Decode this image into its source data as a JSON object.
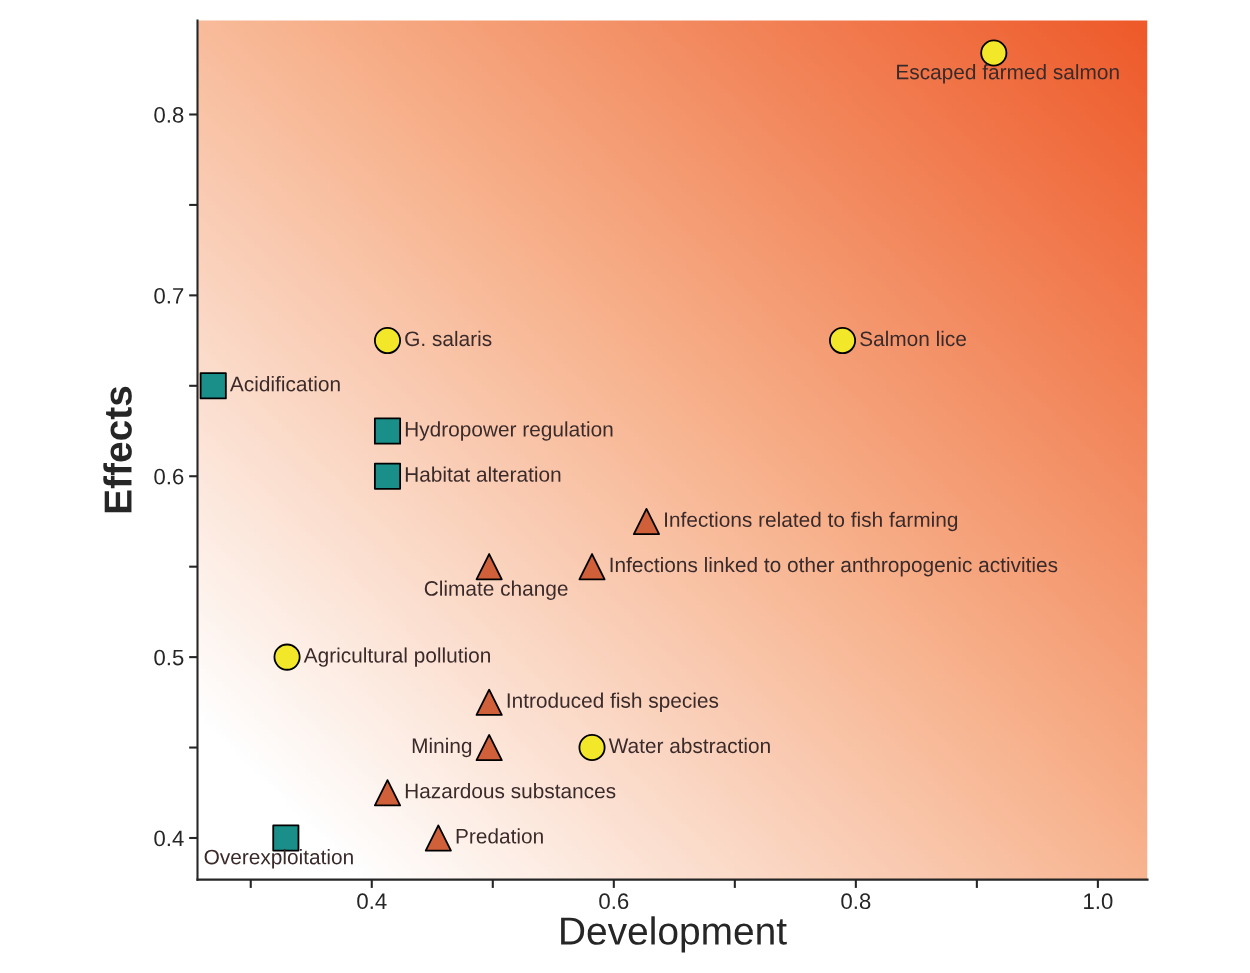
{
  "chart_data": {
    "type": "scatter",
    "xlabel": "Development",
    "ylabel": "Effects",
    "xlim": [
      0.256,
      1.041
    ],
    "ylim": [
      0.377,
      0.852
    ],
    "xticks": [
      {
        "value": 0.3,
        "label": null
      },
      0.4,
      {
        "value": 0.5,
        "label": null
      },
      0.6,
      {
        "value": 0.7,
        "label": null
      },
      0.8,
      {
        "value": 0.9,
        "label": null
      },
      {
        "value": 1.0,
        "label": "1.0"
      }
    ],
    "yticks": [
      0.4,
      {
        "value": 0.45,
        "label": null
      },
      0.5,
      {
        "value": 0.55,
        "label": null
      },
      0.6,
      {
        "value": 0.65,
        "label": null
      },
      0.7,
      {
        "value": 0.75,
        "label": null
      },
      0.8
    ],
    "grid": false,
    "legend": false,
    "series": [
      {
        "marker": "circle",
        "color": "#f2e829",
        "x": [
          0.914,
          0.413,
          0.789,
          0.33,
          0.582
        ],
        "values": [
          0.834,
          0.675,
          0.675,
          0.5,
          0.45
        ]
      },
      {
        "marker": "square",
        "color": "#1a8f8a",
        "x": [
          0.269,
          0.413,
          0.413,
          0.329
        ],
        "values": [
          0.65,
          0.625,
          0.6,
          0.4
        ]
      },
      {
        "marker": "triangle",
        "color": "#d0603a",
        "x": [
          0.627,
          0.497,
          0.582,
          0.497,
          0.497,
          0.413,
          0.455
        ],
        "values": [
          0.575,
          0.55,
          0.55,
          0.475,
          0.45,
          0.425,
          0.4
        ]
      }
    ],
    "annotations": [
      {
        "text": "Escaped farmed salmon",
        "x": 0.914,
        "y": 0.834
      },
      {
        "text": "G. salaris",
        "x": 0.413,
        "y": 0.675
      },
      {
        "text": "Salmon lice",
        "x": 0.789,
        "y": 0.675
      },
      {
        "text": "Acidification",
        "x": 0.269,
        "y": 0.65
      },
      {
        "text": "Hydropower regulation",
        "x": 0.413,
        "y": 0.625
      },
      {
        "text": "Habitat alteration",
        "x": 0.413,
        "y": 0.6
      },
      {
        "text": "Infections related to fish farming",
        "x": 0.627,
        "y": 0.575
      },
      {
        "text": "Climate change",
        "x": 0.497,
        "y": 0.55
      },
      {
        "text": "Infections linked to other anthropogenic activities",
        "x": 0.582,
        "y": 0.55
      },
      {
        "text": "Agricultural pollution",
        "x": 0.33,
        "y": 0.5
      },
      {
        "text": "Introduced fish species",
        "x": 0.497,
        "y": 0.475
      },
      {
        "text": "Mining",
        "x": 0.497,
        "y": 0.45
      },
      {
        "text": "Water abstraction",
        "x": 0.582,
        "y": 0.45
      },
      {
        "text": "Hazardous substances",
        "x": 0.413,
        "y": 0.425
      },
      {
        "text": "Overexploitation",
        "x": 0.329,
        "y": 0.4
      },
      {
        "text": "Predation",
        "x": 0.455,
        "y": 0.4
      }
    ]
  }
}
